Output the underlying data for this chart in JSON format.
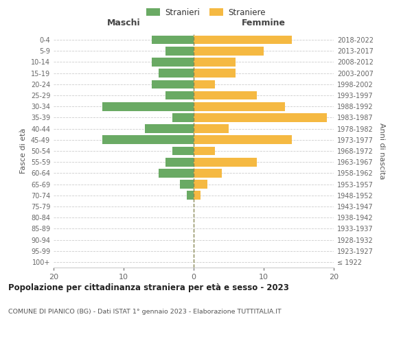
{
  "age_groups": [
    "100+",
    "95-99",
    "90-94",
    "85-89",
    "80-84",
    "75-79",
    "70-74",
    "65-69",
    "60-64",
    "55-59",
    "50-54",
    "45-49",
    "40-44",
    "35-39",
    "30-34",
    "25-29",
    "20-24",
    "15-19",
    "10-14",
    "5-9",
    "0-4"
  ],
  "birth_years": [
    "≤ 1922",
    "1923-1927",
    "1928-1932",
    "1933-1937",
    "1938-1942",
    "1943-1947",
    "1948-1952",
    "1953-1957",
    "1958-1962",
    "1963-1967",
    "1968-1972",
    "1973-1977",
    "1978-1982",
    "1983-1987",
    "1988-1992",
    "1993-1997",
    "1998-2002",
    "2003-2007",
    "2008-2012",
    "2013-2017",
    "2018-2022"
  ],
  "maschi": [
    0,
    0,
    0,
    0,
    0,
    0,
    1,
    2,
    5,
    4,
    3,
    13,
    7,
    3,
    13,
    4,
    6,
    5,
    6,
    4,
    6
  ],
  "femmine": [
    0,
    0,
    0,
    0,
    0,
    0,
    1,
    2,
    4,
    9,
    3,
    14,
    5,
    19,
    13,
    9,
    3,
    6,
    6,
    10,
    14
  ],
  "male_color": "#6aaa64",
  "female_color": "#f5b942",
  "center_line_color": "#888855",
  "grid_color": "#cccccc",
  "xlim": 20,
  "title": "Popolazione per cittadinanza straniera per età e sesso - 2023",
  "subtitle": "COMUNE DI PIANICO (BG) - Dati ISTAT 1° gennaio 2023 - Elaborazione TUTTITALIA.IT",
  "legend_maschi": "Stranieri",
  "legend_femmine": "Straniere",
  "xlabel_left": "Maschi",
  "xlabel_right": "Femmine",
  "ylabel_left": "Fasce di età",
  "ylabel_right": "Anni di nascita",
  "background_color": "#ffffff"
}
